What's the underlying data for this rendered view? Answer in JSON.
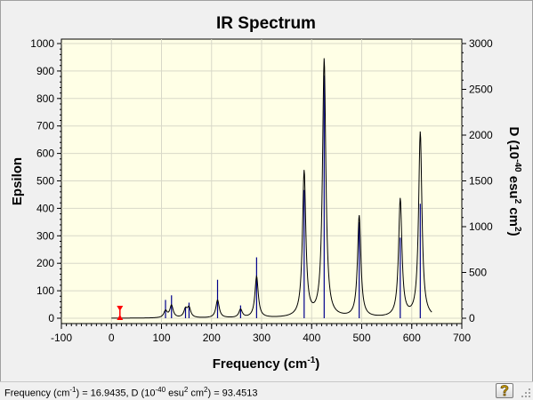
{
  "chart_data": {
    "type": "line",
    "title": "IR Spectrum",
    "xlabel": "Frequency (cm",
    "xlabel_sup": "-1",
    "xlabel_tail": ")",
    "ylabel": "Epsilon",
    "y2label_main": "D (10",
    "y2label_sup": "-40",
    "y2label_mid": " esu",
    "y2label_sup2": "2",
    "y2label_sub": " cm",
    "y2label_sup3": "2",
    "y2label_tail": ")",
    "xlim": [
      -100,
      700
    ],
    "ylim": [
      0,
      1000
    ],
    "y2lim": [
      0,
      3000
    ],
    "x_ticks": [
      "-100",
      "0",
      "100",
      "200",
      "300",
      "400",
      "500",
      "600",
      "700"
    ],
    "y_ticks": [
      "0",
      "100",
      "200",
      "300",
      "400",
      "500",
      "600",
      "700",
      "800",
      "900",
      "1000"
    ],
    "y2_ticks": [
      "0",
      "500",
      "1000",
      "1500",
      "2000",
      "2500",
      "3000"
    ],
    "grid": true,
    "line_color": "#000000",
    "stick_color": "#00008b",
    "marker_color": "#ff0000",
    "marker_x": 16.9435,
    "baseline_range": [
      0,
      640
    ],
    "peaks": [
      {
        "x": 108,
        "epsilon": 25,
        "d": 200
      },
      {
        "x": 120,
        "epsilon": 45,
        "d": 250
      },
      {
        "x": 148,
        "epsilon": 30,
        "d": 120
      },
      {
        "x": 155,
        "epsilon": 35,
        "d": 170
      },
      {
        "x": 212,
        "epsilon": 65,
        "d": 420
      },
      {
        "x": 258,
        "epsilon": 30,
        "d": 140
      },
      {
        "x": 290,
        "epsilon": 150,
        "d": 665
      },
      {
        "x": 385,
        "epsilon": 530,
        "d": 1400
      },
      {
        "x": 425,
        "epsilon": 940,
        "d": 2650
      },
      {
        "x": 495,
        "epsilon": 370,
        "d": 1050
      },
      {
        "x": 577,
        "epsilon": 430,
        "d": 880
      },
      {
        "x": 617,
        "epsilon": 675,
        "d": 1250
      }
    ]
  },
  "status": {
    "freq_label": "Frequency (cm",
    "freq_sup": "-1",
    "freq_tail": ") = 16.9435, D (10",
    "d_sup": "-40",
    "d_mid": " esu",
    "d_sup2": "2",
    "d_mid2": " cm",
    "d_sup3": "2",
    "d_tail": ") = 93.4513"
  },
  "help_icon": "question-mark-icon"
}
